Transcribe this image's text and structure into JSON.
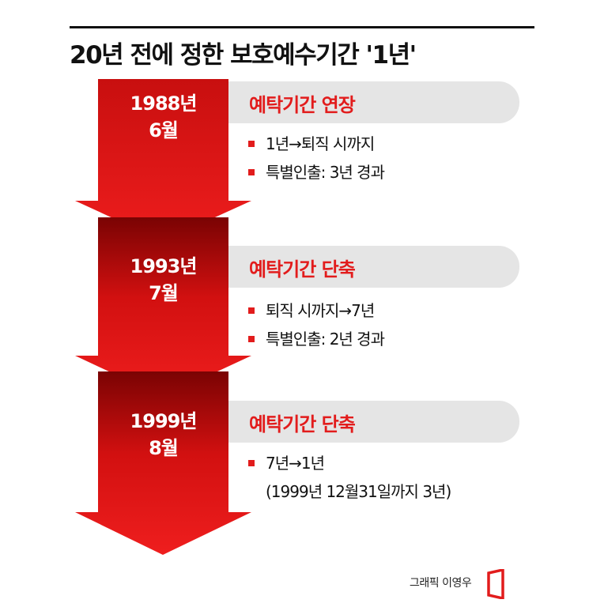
{
  "title": "20년 전에 정한 보호예수기간 '1년'",
  "steps": [
    {
      "date_line1": "1988년",
      "date_line2": "6월",
      "heading": "예탁기간 연장",
      "items": [
        "1년→퇴직 시까지",
        "특별인출: 3년 경과"
      ]
    },
    {
      "date_line1": "1993년",
      "date_line2": "7월",
      "heading": "예탁기간 단축",
      "items": [
        "퇴직 시까지→7년",
        "특별인출: 2년 경과"
      ]
    },
    {
      "date_line1": "1999년",
      "date_line2": "8월",
      "heading": "예탁기간 단축",
      "items": [
        "7년→1년"
      ],
      "note": "(1999년 12월31일까지 3년)"
    }
  ],
  "credit": "그래픽 이영우",
  "colors": {
    "accent_red": "#e21c1c",
    "dark_red": "#a80808",
    "bar_gray": "#e5e5e5"
  }
}
